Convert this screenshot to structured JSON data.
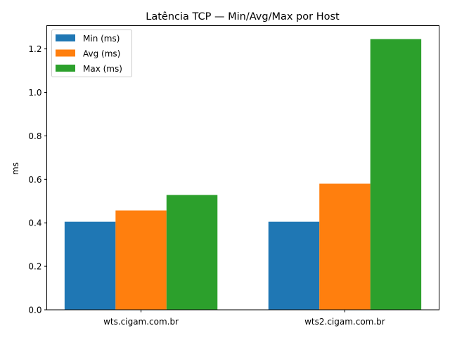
{
  "chart_data": {
    "type": "bar",
    "title": "Latência TCP — Min/Avg/Max por Host",
    "xlabel": "",
    "ylabel": "ms",
    "categories": [
      "wts.cigam.com.br",
      "wts2.cigam.com.br"
    ],
    "series": [
      {
        "name": "Min (ms)",
        "color": "#1f77b4",
        "values": [
          0.405,
          0.405
        ]
      },
      {
        "name": "Avg (ms)",
        "color": "#ff7f0e",
        "values": [
          0.457,
          0.58
        ]
      },
      {
        "name": "Max (ms)",
        "color": "#2ca02c",
        "values": [
          0.528,
          1.245
        ]
      }
    ],
    "ylim": [
      0,
      1.307
    ],
    "yticks": [
      "0.0",
      "0.2",
      "0.4",
      "0.6",
      "0.8",
      "1.0",
      "1.2"
    ],
    "grid": false,
    "legend_position": "top-left"
  }
}
